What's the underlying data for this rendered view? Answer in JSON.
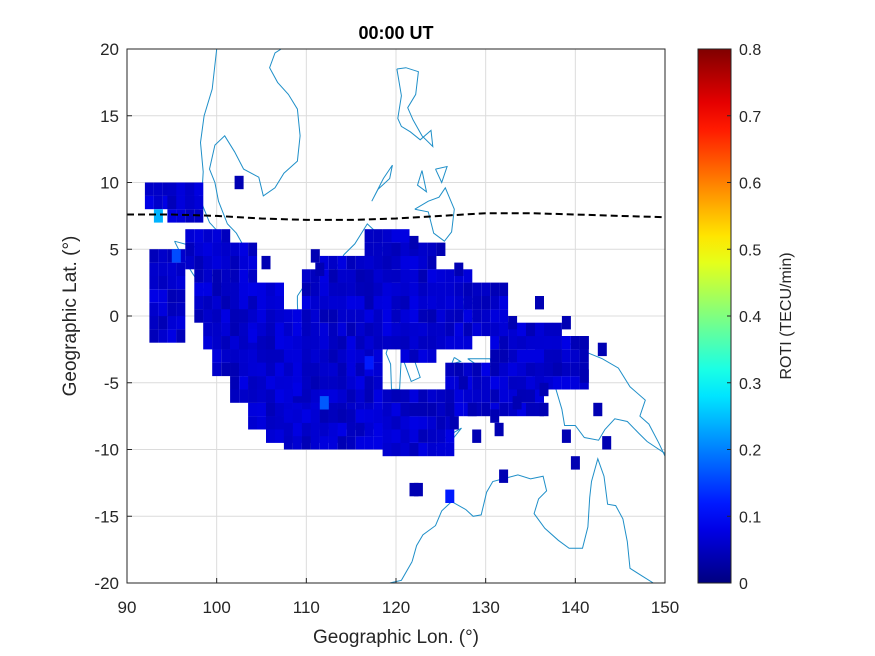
{
  "chart_data": {
    "type": "heatmap",
    "title": "00:00 UT",
    "xlabel": "Geographic Lon. (°)",
    "ylabel": "Geographic Lat. (°)",
    "xlim": [
      90,
      150
    ],
    "ylim": [
      -20,
      20
    ],
    "xticks": [
      "90",
      "100",
      "110",
      "120",
      "130",
      "140",
      "150"
    ],
    "yticks": [
      "20",
      "15",
      "10",
      "5",
      "0",
      "-5",
      "-10",
      "-15",
      "-20"
    ],
    "grid": true,
    "colormap": "jet",
    "colorbar": {
      "label": "ROTI (TECU/min)",
      "range": [
        0,
        0.8
      ],
      "ticks": [
        "0.8",
        "0.7",
        "0.6",
        "0.5",
        "0.4",
        "0.3",
        "0.2",
        "0.1",
        "0"
      ]
    },
    "magnetic_equator": {
      "style": "dashed",
      "color": "#000000",
      "points": [
        [
          90,
          7.6
        ],
        [
          95,
          7.6
        ],
        [
          100,
          7.5
        ],
        [
          105,
          7.3
        ],
        [
          110,
          7.2
        ],
        [
          115,
          7.2
        ],
        [
          120,
          7.3
        ],
        [
          125,
          7.5
        ],
        [
          130,
          7.7
        ],
        [
          135,
          7.7
        ],
        [
          140,
          7.6
        ],
        [
          145,
          7.5
        ],
        [
          150,
          7.4
        ]
      ]
    },
    "coastline_color": "#1f8fc8",
    "roti_cells": {
      "cell_size_deg": [
        1,
        1
      ],
      "default_value": 0.04,
      "ranges": [
        [
          [
            92.5,
            8.5
          ],
          [
            97.5,
            9.5
          ]
        ],
        [
          [
            95,
            7.5
          ],
          [
            98,
            9.5
          ]
        ],
        [
          [
            93,
            5
          ],
          [
            96,
            -1.5
          ]
        ],
        [
          [
            97,
            6.5
          ],
          [
            101,
            4
          ]
        ],
        [
          [
            98,
            5
          ],
          [
            104,
            0
          ]
        ],
        [
          [
            99,
            2
          ],
          [
            107,
            -2
          ]
        ],
        [
          [
            100,
            0
          ],
          [
            110,
            -4
          ]
        ],
        [
          [
            102,
            -2
          ],
          [
            117,
            -6
          ]
        ],
        [
          [
            104,
            -4
          ],
          [
            118,
            -8
          ]
        ],
        [
          [
            106,
            -6
          ],
          [
            114,
            -9
          ]
        ],
        [
          [
            108,
            -7
          ],
          [
            121,
            -9.5
          ]
        ],
        [
          [
            110,
            3
          ],
          [
            118,
            -3
          ]
        ],
        [
          [
            112,
            4
          ],
          [
            119,
            1
          ]
        ],
        [
          [
            117,
            6
          ],
          [
            121,
            -2
          ]
        ],
        [
          [
            121,
            5
          ],
          [
            124,
            -3
          ]
        ],
        [
          [
            124,
            3
          ],
          [
            128,
            -2
          ]
        ],
        [
          [
            119,
            -6
          ],
          [
            126,
            -10
          ]
        ],
        [
          [
            126,
            -4
          ],
          [
            132,
            -7
          ]
        ],
        [
          [
            129,
            2
          ],
          [
            132,
            -1
          ]
        ],
        [
          [
            131,
            -1
          ],
          [
            138,
            -4
          ]
        ],
        [
          [
            133,
            -4
          ],
          [
            136,
            -7
          ]
        ],
        [
          [
            136,
            -2
          ],
          [
            141,
            -5
          ]
        ]
      ],
      "singles": [
        [
          93.5,
          7.5,
          0.24
        ],
        [
          95.5,
          4.5,
          0.16
        ],
        [
          112,
          -6.5,
          0.17
        ],
        [
          117,
          -3.5,
          0.12
        ],
        [
          109,
          -5.5,
          0.08
        ],
        [
          104,
          -1.5,
          0.08
        ],
        [
          102.5,
          10,
          0.04
        ],
        [
          105.5,
          4,
          0.04
        ],
        [
          111,
          4.5,
          0.04
        ],
        [
          111.5,
          3.5,
          0.04
        ],
        [
          116,
          3,
          0.04
        ],
        [
          122,
          5.5,
          0.04
        ],
        [
          125,
          5,
          0.04
        ],
        [
          127,
          3.5,
          0.04
        ],
        [
          133,
          -0.5,
          0.04
        ],
        [
          136,
          1,
          0.04
        ],
        [
          139,
          -0.5,
          0.04
        ],
        [
          141,
          -2,
          0.04
        ],
        [
          143,
          -2.5,
          0.04
        ],
        [
          141,
          -4.5,
          0.04
        ],
        [
          138,
          -4,
          0.04
        ],
        [
          136.5,
          -5.5,
          0.04
        ],
        [
          133.5,
          -6.5,
          0.04
        ],
        [
          131,
          -7.5,
          0.04
        ],
        [
          128.5,
          -7,
          0.04
        ],
        [
          127.5,
          -5,
          0.04
        ],
        [
          126,
          -7,
          0.04
        ],
        [
          126.5,
          -8,
          0.04
        ],
        [
          129,
          -9,
          0.04
        ],
        [
          131.5,
          -8.5,
          0.04
        ],
        [
          136.5,
          -7,
          0.04
        ],
        [
          139,
          -9,
          0.04
        ],
        [
          140,
          -11,
          0.04
        ],
        [
          143.5,
          -9.5,
          0.04
        ],
        [
          142.5,
          -7,
          0.04
        ],
        [
          122,
          -13,
          0.04
        ],
        [
          122.5,
          -13,
          0.04
        ],
        [
          126,
          -13.5,
          0.12
        ],
        [
          132,
          -12,
          0.04
        ]
      ]
    }
  }
}
